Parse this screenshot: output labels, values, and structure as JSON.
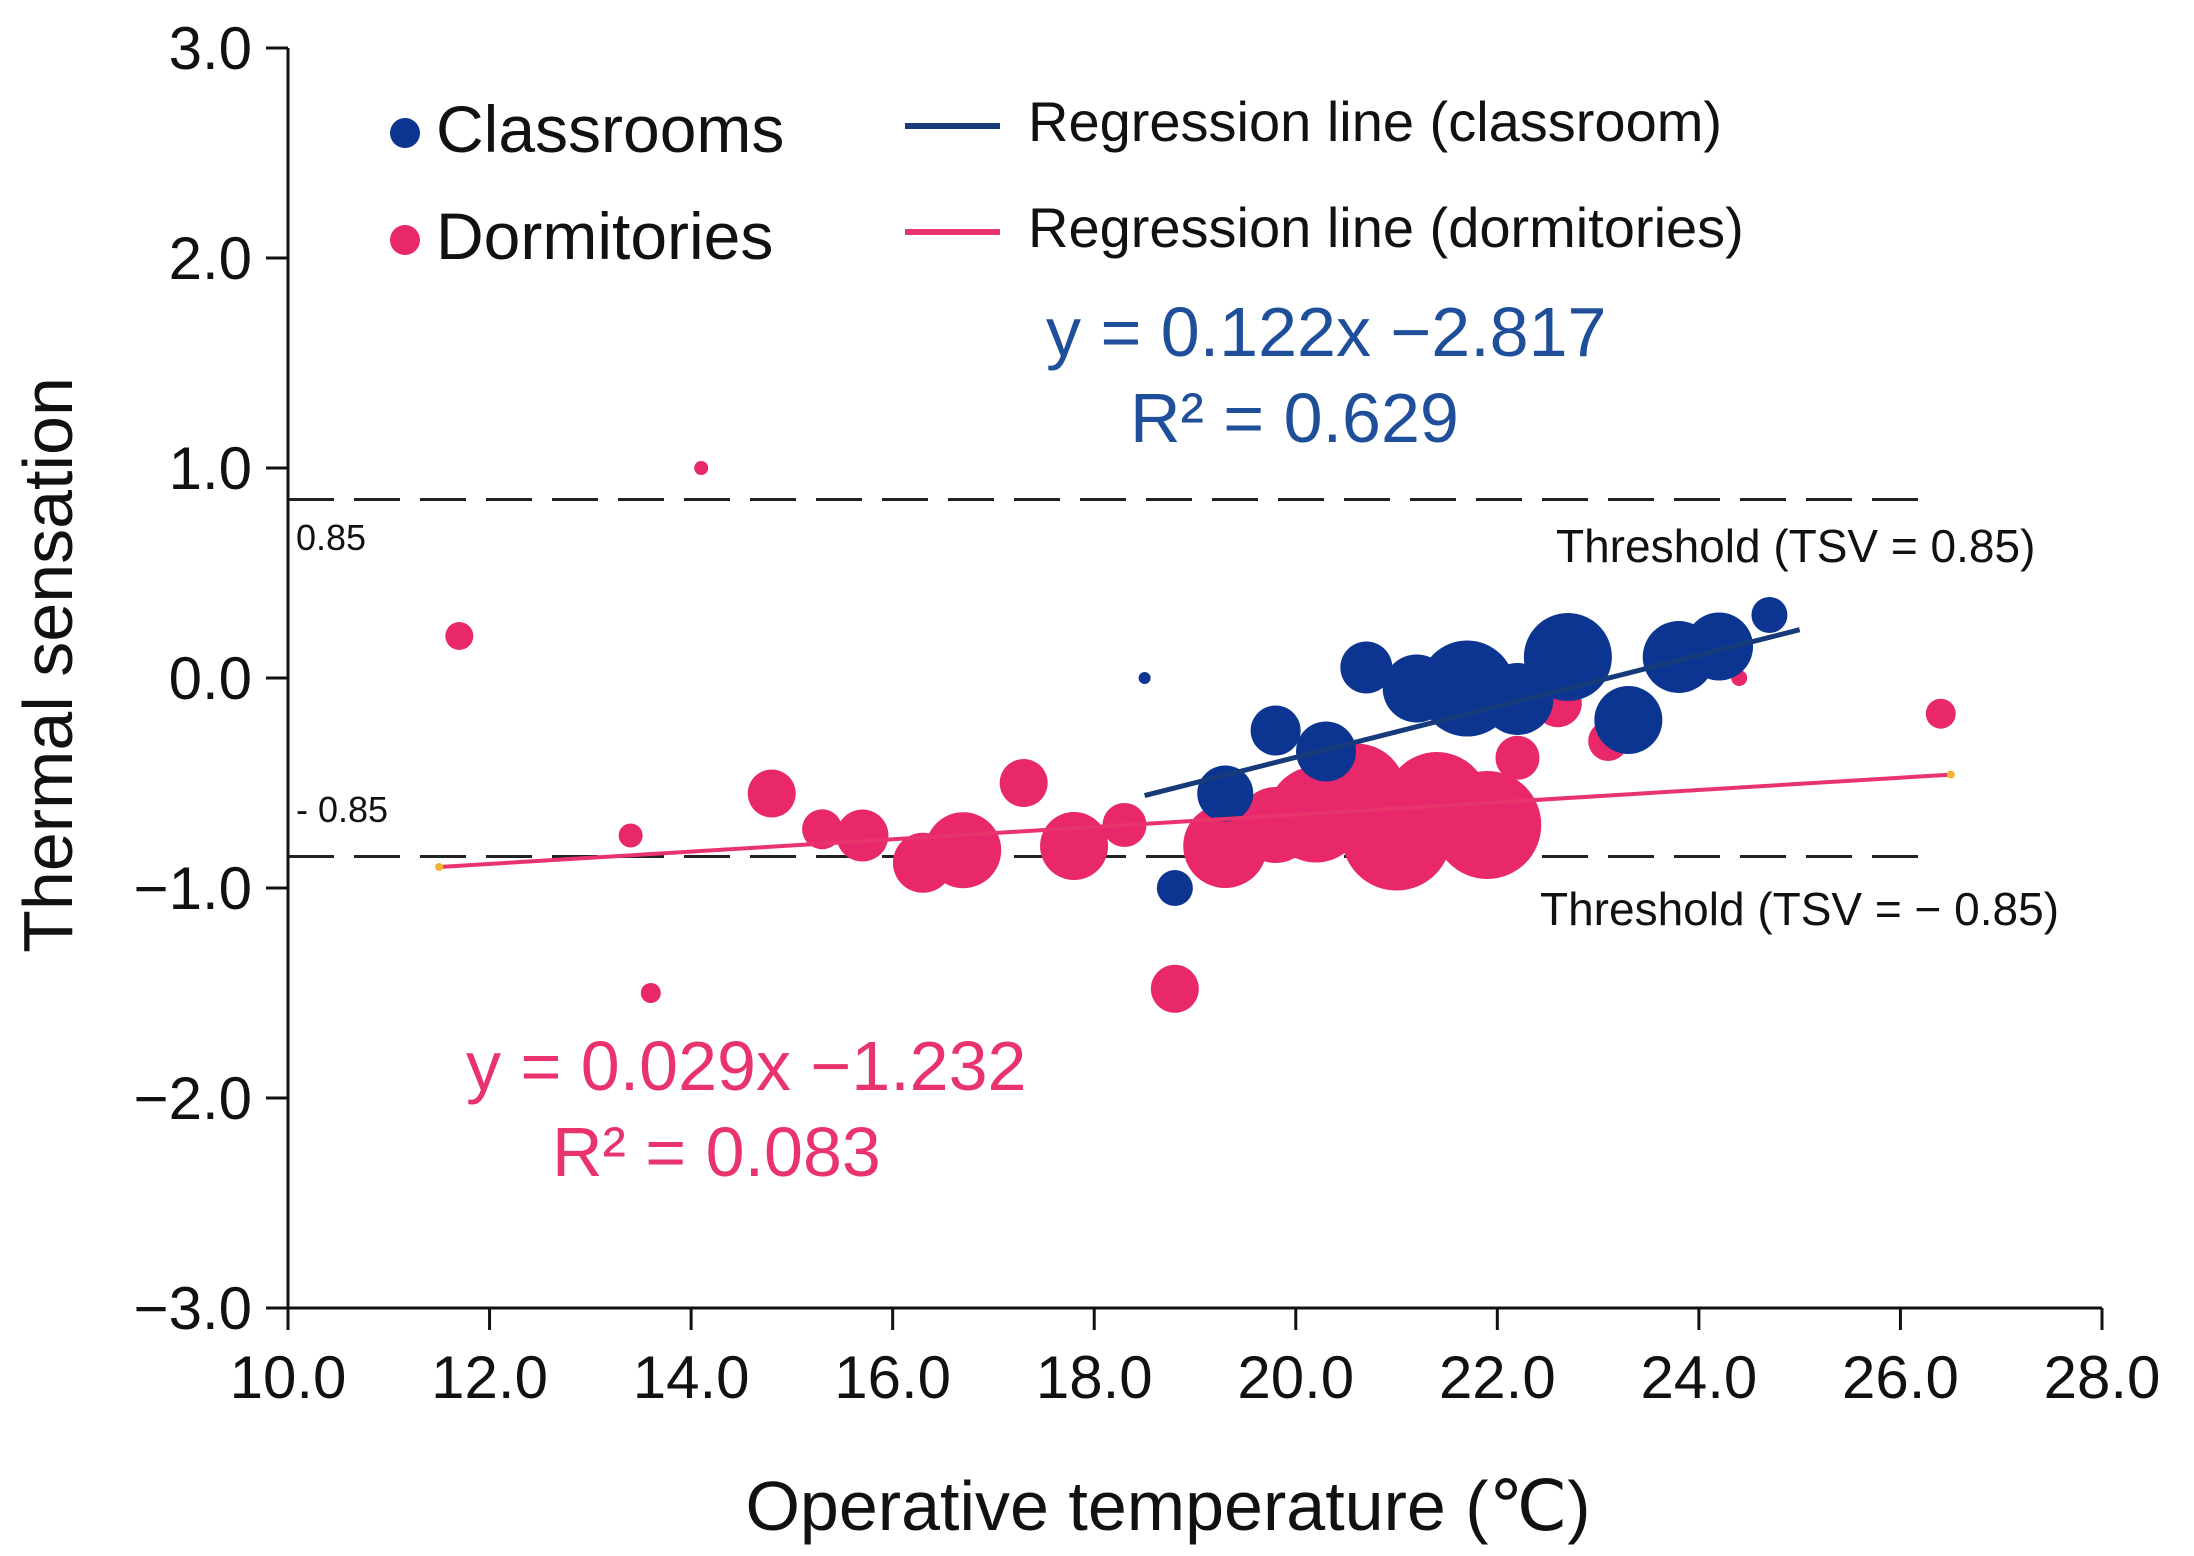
{
  "chart_data": {
    "type": "scatter",
    "xlabel": "Operative temperature (℃)",
    "ylabel": "Thermal sensation",
    "xlim": [
      10.0,
      28.0
    ],
    "ylim": [
      -3.0,
      3.0
    ],
    "xticks": [
      "10.0",
      "12.0",
      "14.0",
      "16.0",
      "18.0",
      "20.0",
      "22.0",
      "24.0",
      "26.0",
      "28.0"
    ],
    "yticks": [
      "−3.0",
      "−2.0",
      "−1.0",
      "0.0",
      "1.0",
      "2.0",
      "3.0"
    ],
    "ytick_values": [
      -3.0,
      -2.0,
      -1.0,
      0.0,
      1.0,
      2.0,
      3.0
    ],
    "xtick_values": [
      10,
      12,
      14,
      16,
      18,
      20,
      22,
      24,
      26,
      28
    ],
    "legend": {
      "classrooms": "Classrooms",
      "dormitories": "Dormitories",
      "reg_classroom": "Regression line (classroom)",
      "reg_dormitories": "Regression line (dormitories)"
    },
    "colors": {
      "classrooms": "#0c3591",
      "dormitories": "#e8286a",
      "reg_classroom": "#163a7a",
      "reg_dormitories": "#e8336d",
      "eq_blue": "#1f4e9a",
      "eq_pink": "#e8336d"
    },
    "thresholds": [
      {
        "value": 0.85,
        "value_label": "0.85",
        "label": "Threshold (TSV = 0.85)"
      },
      {
        "value": -0.85,
        "value_label": "- 0.85",
        "label": "Threshold (TSV = − 0.85)"
      }
    ],
    "regressions": {
      "classroom": {
        "equation": "y = 0.122x −2.817",
        "r2": "R² = 0.629",
        "x_range": [
          18.5,
          25.0
        ],
        "y_range": [
          -0.56,
          0.23
        ]
      },
      "dormitories": {
        "equation": "y = 0.029x −1.232",
        "r2": "R² = 0.083",
        "x_range": [
          11.5,
          26.5
        ],
        "y_range": [
          -0.9,
          -0.46
        ]
      }
    },
    "series": [
      {
        "name": "Dormitories",
        "points": [
          {
            "x": 11.7,
            "y": 0.2,
            "size": 14
          },
          {
            "x": 13.4,
            "y": -0.75,
            "size": 12
          },
          {
            "x": 13.6,
            "y": -1.5,
            "size": 10
          },
          {
            "x": 14.1,
            "y": 1.0,
            "size": 7
          },
          {
            "x": 14.8,
            "y": -0.55,
            "size": 24
          },
          {
            "x": 15.3,
            "y": -0.72,
            "size": 20
          },
          {
            "x": 15.7,
            "y": -0.75,
            "size": 26
          },
          {
            "x": 16.3,
            "y": -0.88,
            "size": 30
          },
          {
            "x": 16.7,
            "y": -0.82,
            "size": 38
          },
          {
            "x": 17.3,
            "y": -0.5,
            "size": 24
          },
          {
            "x": 17.8,
            "y": -0.8,
            "size": 34
          },
          {
            "x": 18.3,
            "y": -0.7,
            "size": 22
          },
          {
            "x": 18.8,
            "y": -1.48,
            "size": 24
          },
          {
            "x": 19.3,
            "y": -0.8,
            "size": 42
          },
          {
            "x": 19.8,
            "y": -0.7,
            "size": 38
          },
          {
            "x": 20.2,
            "y": -0.65,
            "size": 48
          },
          {
            "x": 20.6,
            "y": -0.55,
            "size": 50
          },
          {
            "x": 21.0,
            "y": -0.75,
            "size": 55
          },
          {
            "x": 21.4,
            "y": -0.6,
            "size": 52
          },
          {
            "x": 21.9,
            "y": -0.7,
            "size": 54
          },
          {
            "x": 22.2,
            "y": -0.38,
            "size": 22
          },
          {
            "x": 22.6,
            "y": -0.12,
            "size": 24
          },
          {
            "x": 23.1,
            "y": -0.3,
            "size": 20
          },
          {
            "x": 24.4,
            "y": 0.0,
            "size": 8
          },
          {
            "x": 26.4,
            "y": -0.17,
            "size": 15
          }
        ]
      },
      {
        "name": "Classrooms",
        "points": [
          {
            "x": 18.5,
            "y": 0.0,
            "size": 6
          },
          {
            "x": 18.8,
            "y": -1.0,
            "size": 18
          },
          {
            "x": 19.3,
            "y": -0.55,
            "size": 28
          },
          {
            "x": 19.8,
            "y": -0.25,
            "size": 25
          },
          {
            "x": 20.3,
            "y": -0.35,
            "size": 30
          },
          {
            "x": 20.7,
            "y": 0.05,
            "size": 26
          },
          {
            "x": 21.2,
            "y": -0.05,
            "size": 34
          },
          {
            "x": 21.7,
            "y": -0.05,
            "size": 48
          },
          {
            "x": 22.2,
            "y": -0.1,
            "size": 36
          },
          {
            "x": 22.7,
            "y": 0.1,
            "size": 44
          },
          {
            "x": 23.3,
            "y": -0.2,
            "size": 34
          },
          {
            "x": 23.8,
            "y": 0.1,
            "size": 36
          },
          {
            "x": 24.2,
            "y": 0.15,
            "size": 34
          },
          {
            "x": 24.7,
            "y": 0.3,
            "size": 18
          }
        ]
      }
    ]
  }
}
